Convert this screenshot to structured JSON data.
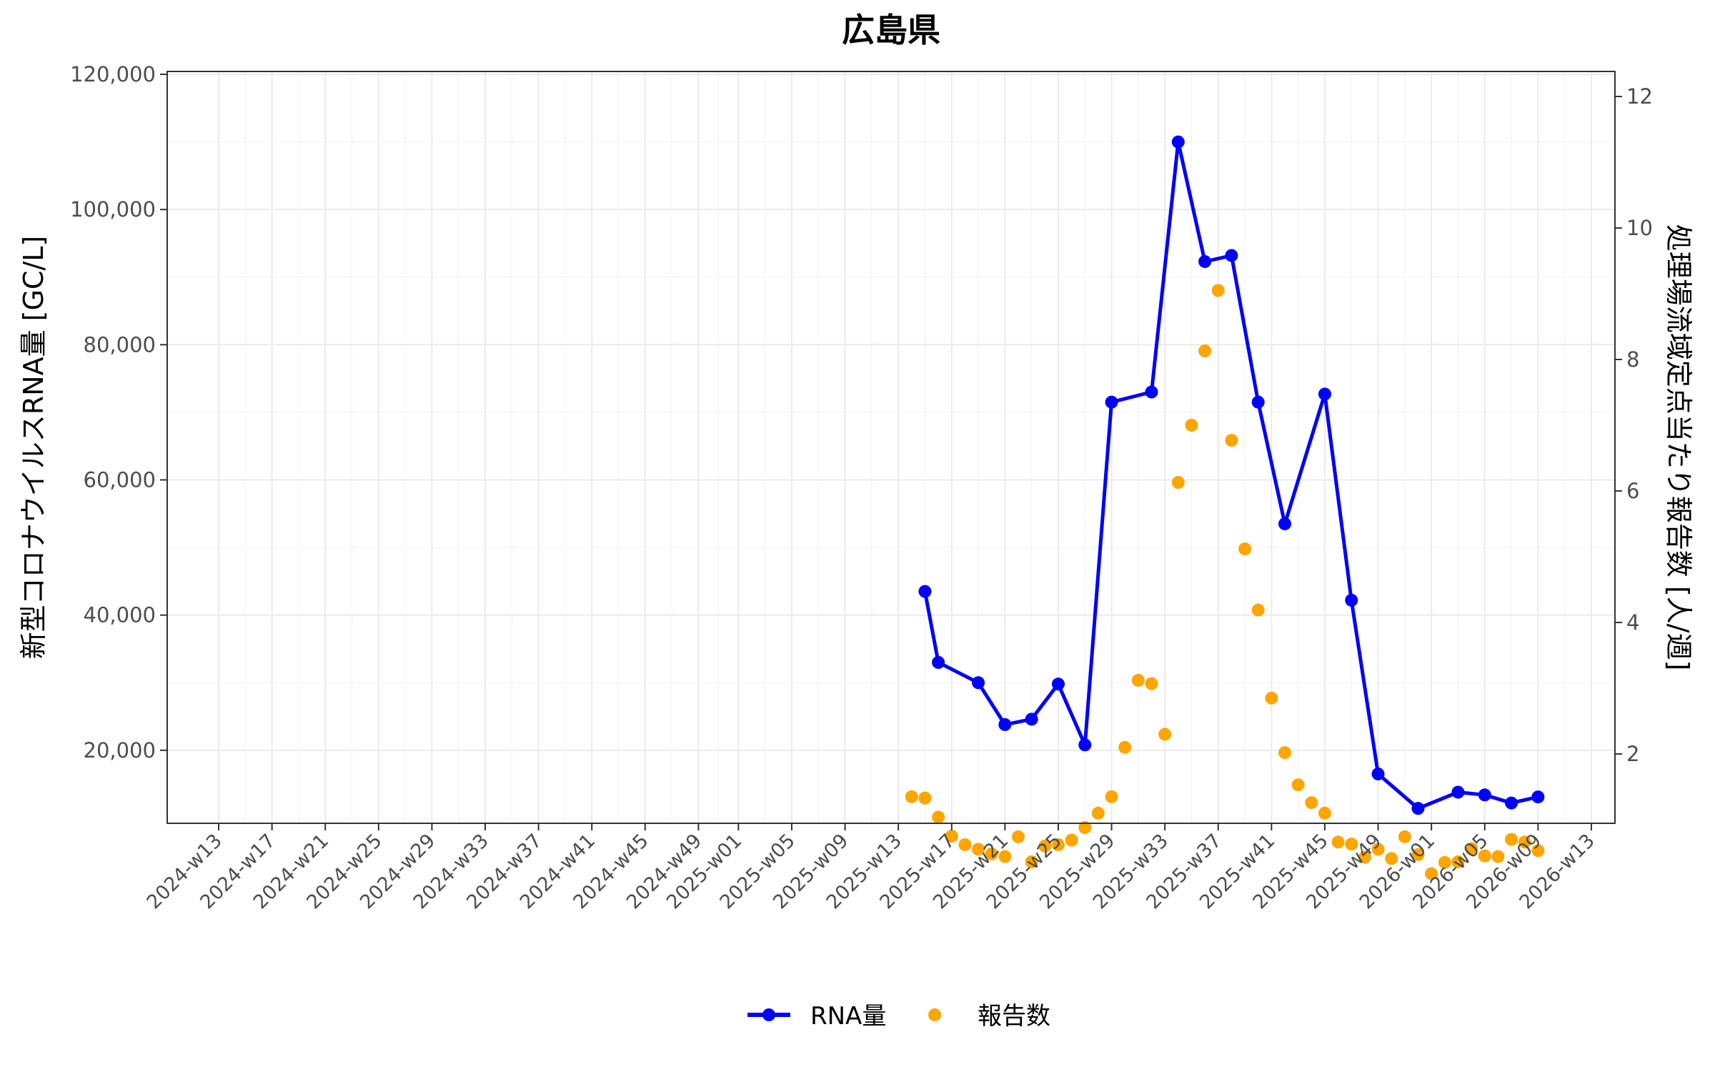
{
  "chart_data": {
    "type": "line",
    "title": "広島県",
    "ylabel_left": "新型コロナウイルスRNA量 [GC/L]",
    "ylabel_right": "処理場流域定点当たり報告数 [人/週]",
    "ylim_left": [
      0,
      120000
    ],
    "ylim_right": [
      0,
      12
    ],
    "left_ticks": [
      "20,000",
      "40,000",
      "60,000",
      "80,000",
      "100,000",
      "120,000"
    ],
    "left_tick_values": [
      20000,
      40000,
      60000,
      80000,
      100000,
      120000
    ],
    "right_ticks": [
      "2",
      "4",
      "6",
      "8",
      "10",
      "12"
    ],
    "right_tick_values": [
      2,
      4,
      6,
      8,
      10,
      12
    ],
    "grid": true,
    "legend_position": "bottom",
    "x_ticks": [
      "2024-w13",
      "2024-w17",
      "2024-w21",
      "2024-w25",
      "2024-w29",
      "2024-w33",
      "2024-w37",
      "2024-w41",
      "2024-w45",
      "2024-w49",
      "2025-w01",
      "2025-w05",
      "2025-w09",
      "2025-w13",
      "2025-w17",
      "2025-w21",
      "2025-w25",
      "2025-w29",
      "2025-w33",
      "2025-w37",
      "2025-w41",
      "2025-w45",
      "2025-w49",
      "2026-w01",
      "2026-w05",
      "2026-w09",
      "2026-w13"
    ],
    "series": [
      {
        "name": "RNA量",
        "axis": "left",
        "color": "#0000ff",
        "style": "line+points",
        "x": [
          "2025-w15",
          "2025-w16",
          "2025-w19",
          "2025-w21",
          "2025-w23",
          "2025-w25",
          "2025-w27",
          "2025-w29",
          "2025-w32",
          "2025-w34",
          "2025-w36",
          "2025-w38",
          "2025-w40",
          "2025-w42",
          "2025-w45",
          "2025-w47",
          "2025-w49",
          "2025-w52",
          "2026-w03",
          "2026-w05",
          "2026-w07",
          "2026-w09"
        ],
        "values": [
          43500,
          33000,
          30000,
          23800,
          24600,
          29800,
          20800,
          71500,
          73000,
          110000,
          92300,
          93200,
          71500,
          53500,
          72700,
          42200,
          16500,
          11400,
          13800,
          13400,
          12200,
          13100
        ]
      },
      {
        "name": "報告数",
        "axis": "right",
        "color": "#ffa500",
        "style": "points",
        "x": [
          "2025-w14",
          "2025-w15",
          "2025-w16",
          "2025-w17",
          "2025-w18",
          "2025-w19",
          "2025-w20",
          "2025-w21",
          "2025-w22",
          "2025-w23",
          "2025-w24",
          "2025-w25",
          "2025-w26",
          "2025-w27",
          "2025-w28",
          "2025-w29",
          "2025-w30",
          "2025-w31",
          "2025-w32",
          "2025-w33",
          "2025-w34",
          "2025-w35",
          "2025-w36",
          "2025-w37",
          "2025-w38",
          "2025-w39",
          "2025-w40",
          "2025-w41",
          "2025-w42",
          "2025-w43",
          "2025-w44",
          "2025-w45",
          "2025-w46",
          "2025-w47",
          "2025-w48",
          "2025-w49",
          "2025-w50",
          "2025-w51",
          "2025-w52",
          "2026-w01",
          "2026-w02",
          "2026-w03",
          "2026-w04",
          "2026-w05",
          "2026-w06",
          "2026-w07",
          "2026-w08",
          "2026-w09"
        ],
        "values": [
          1.35,
          1.33,
          1.04,
          0.75,
          0.62,
          0.55,
          0.48,
          0.44,
          0.74,
          0.36,
          0.6,
          0.62,
          0.69,
          0.88,
          1.1,
          1.35,
          2.1,
          3.12,
          3.07,
          2.3,
          6.13,
          7.0,
          8.13,
          9.05,
          6.77,
          5.12,
          4.19,
          2.85,
          2.02,
          1.53,
          1.26,
          1.1,
          0.66,
          0.63,
          0.43,
          0.55,
          0.41,
          0.74,
          0.47,
          0.18,
          0.35,
          0.36,
          0.56,
          0.45,
          0.44,
          0.7,
          0.66,
          0.53
        ]
      }
    ]
  }
}
